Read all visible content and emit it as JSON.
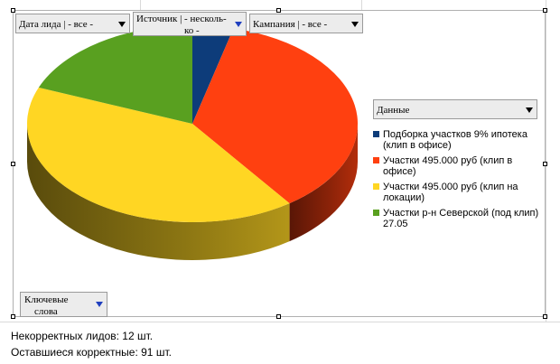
{
  "pivot_fields": {
    "date": "Дата лида | - все -",
    "source_line1": "Источник | - несколь-",
    "source_line2": "ко -",
    "campaign": "Кампания | - все -",
    "data": "Данные",
    "keywords_line1": "Ключевые",
    "keywords_line2": "слова"
  },
  "colors": {
    "navy": "#0d3c7a",
    "red": "#ff4010",
    "yellow": "#ffd623",
    "green": "#59a020"
  },
  "chart_data": {
    "type": "pie",
    "variant": "3d",
    "legend_position": "right",
    "series": [
      {
        "name": "Подборка участков 9% ипотека (клип в офисе)",
        "value": 4,
        "legend_lines": [
          "Подборка участков 9% ипотека",
          "(клип в офисе)"
        ],
        "color": "#0d3c7a"
      },
      {
        "name": "Участки 495.000 руб (клип в офисе)",
        "value": 36,
        "legend_lines": [
          "Участки 495.000 руб (клип в",
          "офисе)"
        ],
        "color": "#ff4010"
      },
      {
        "name": "Участки 495.000 руб (клип на локации)",
        "value": 41,
        "legend_lines": [
          "Участки 495.000 руб (клип на",
          "локации)"
        ],
        "color": "#ffd623"
      },
      {
        "name": "Участки р-н Северской (под клип) 27.05",
        "value": 19,
        "legend_lines": [
          "Участки р-н Северской (под клип)",
          "27.05"
        ],
        "color": "#59a020"
      }
    ]
  },
  "notes": {
    "incorrect": "Некорректных лидов: 12 шт.",
    "remaining": "Оставшиеся корректные: 91 шт."
  }
}
